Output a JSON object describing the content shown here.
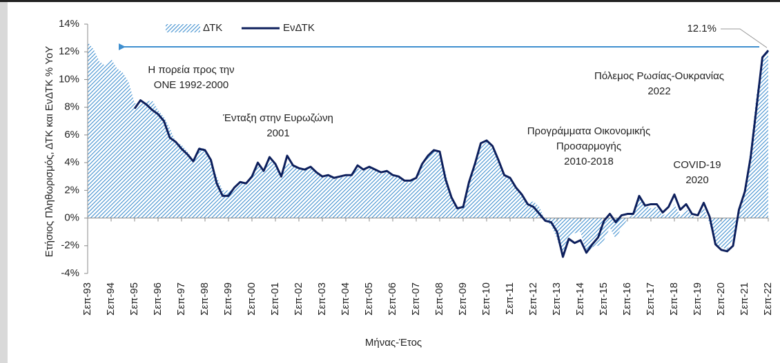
{
  "chart_data": {
    "type": "area-line",
    "y_label": "Ετήσιος Πληθωρισμός, ΔΤΚ και ΕνΔΤΚ % YoY",
    "x_label": "Μήνας-Έτος",
    "categories": [
      "Σεπ-93",
      null,
      null,
      null,
      "Σεπ-94",
      null,
      null,
      null,
      "Σεπ-95",
      null,
      null,
      null,
      "Σεπ-96",
      null,
      null,
      null,
      "Σεπ-97",
      null,
      null,
      null,
      "Σεπ-98",
      null,
      null,
      null,
      "Σεπ-99",
      null,
      null,
      null,
      "Σεπ-00",
      null,
      null,
      null,
      "Σεπ-01",
      null,
      null,
      null,
      "Σεπ-02",
      null,
      null,
      null,
      "Σεπ-03",
      null,
      null,
      null,
      "Σεπ-04",
      null,
      null,
      null,
      "Σεπ-05",
      null,
      null,
      null,
      "Σεπ-06",
      null,
      null,
      null,
      "Σεπ-07",
      null,
      null,
      null,
      "Σεπ-08",
      null,
      null,
      null,
      "Σεπ-09",
      null,
      null,
      null,
      "Σεπ-10",
      null,
      null,
      null,
      "Σεπ-11",
      null,
      null,
      null,
      "Σεπ-12",
      null,
      null,
      null,
      "Σεπ-13",
      null,
      null,
      null,
      "Σεπ-14",
      null,
      null,
      null,
      "Σεπ-15",
      null,
      null,
      null,
      "Σεπ-16",
      null,
      null,
      null,
      "Σεπ-17",
      null,
      null,
      null,
      "Σεπ-18",
      null,
      null,
      null,
      "Σεπ-19",
      null,
      null,
      null,
      "Σεπ-20",
      null,
      null,
      null,
      "Σεπ-21",
      null,
      null,
      null,
      "Σεπ-22"
    ],
    "series": [
      {
        "name": "ΔΤΚ",
        "kind": "area",
        "color": "#3f8fcf",
        "values": [
          12.7,
          12.2,
          11.3,
          11.0,
          11.5,
          10.8,
          10.5,
          9.8,
          8.3,
          8.2,
          8.4,
          8.5,
          7.8,
          7.3,
          6.5,
          5.5,
          5.3,
          4.8,
          4.2,
          5.1,
          5.0,
          4.0,
          3.0,
          2.0,
          2.0,
          2.3,
          2.6,
          2.4,
          3.0,
          3.8,
          3.5,
          4.2,
          3.8,
          3.2,
          4.0,
          3.8,
          3.6,
          3.5,
          3.6,
          3.3,
          3.0,
          3.1,
          2.8,
          2.9,
          3.0,
          3.1,
          3.6,
          3.4,
          3.6,
          3.5,
          3.2,
          3.3,
          3.0,
          3.0,
          2.6,
          2.6,
          2.9,
          3.9,
          4.5,
          4.9,
          4.7,
          3.3,
          1.5,
          0.8,
          0.9,
          2.5,
          3.9,
          5.2,
          5.6,
          5.0,
          4.2,
          3.2,
          3.0,
          2.3,
          1.8,
          1.1,
          1.2,
          0.8,
          -0.2,
          -0.5,
          -1.5,
          -2.8,
          -1.3,
          -1.1,
          -1.0,
          -2.6,
          -2.1,
          -2.0,
          -1.6,
          -0.7,
          -1.5,
          -0.7,
          -0.1,
          0.3,
          1.7,
          0.9,
          0.7,
          0.8,
          0.2,
          0.4,
          1.0,
          0.2,
          0.7,
          0.2,
          -0.1,
          0.8,
          -0.4,
          -1.9,
          -2.1,
          -2.3,
          -1.5,
          0.5,
          1.9,
          5.1,
          8.9,
          11.6,
          12.1
        ]
      },
      {
        "name": "ΕνΔΤΚ",
        "kind": "line",
        "color": "#0d1f5c",
        "values": [
          null,
          null,
          null,
          null,
          null,
          null,
          null,
          null,
          7.9,
          8.5,
          8.2,
          7.8,
          7.5,
          7.0,
          5.8,
          5.5,
          5.0,
          4.6,
          4.1,
          5.0,
          4.9,
          4.2,
          2.5,
          1.6,
          1.6,
          2.2,
          2.6,
          2.5,
          3.0,
          4.0,
          3.4,
          4.4,
          3.9,
          3.0,
          4.5,
          3.8,
          3.6,
          3.5,
          3.7,
          3.3,
          3.0,
          3.1,
          2.9,
          3.0,
          3.1,
          3.1,
          3.8,
          3.5,
          3.7,
          3.5,
          3.3,
          3.4,
          3.1,
          3.0,
          2.7,
          2.7,
          2.9,
          3.9,
          4.5,
          4.9,
          4.8,
          2.8,
          1.5,
          0.7,
          0.8,
          2.6,
          3.9,
          5.4,
          5.6,
          5.2,
          4.2,
          3.1,
          2.9,
          2.2,
          1.7,
          1.0,
          0.8,
          0.3,
          -0.2,
          -0.3,
          -1.0,
          -2.8,
          -1.5,
          -1.8,
          -1.6,
          -2.5,
          -1.9,
          -1.4,
          -0.2,
          0.3,
          -0.3,
          0.2,
          0.3,
          0.3,
          1.6,
          0.9,
          1.0,
          1.0,
          0.4,
          0.8,
          1.7,
          0.6,
          1.0,
          0.3,
          0.2,
          1.1,
          0.1,
          -1.9,
          -2.3,
          -2.4,
          -2.0,
          0.6,
          1.9,
          4.4,
          8.0,
          11.6,
          12.1
        ]
      }
    ],
    "ylim": [
      -4,
      14
    ],
    "yticks": [
      {
        "value": -4,
        "label": "-4%"
      },
      {
        "value": -2,
        "label": "-2%"
      },
      {
        "value": 0,
        "label": "0%"
      },
      {
        "value": 2,
        "label": "2%"
      },
      {
        "value": 4,
        "label": "4%"
      },
      {
        "value": 6,
        "label": "6%"
      },
      {
        "value": 8,
        "label": "8%"
      },
      {
        "value": 10,
        "label": "10%"
      },
      {
        "value": 12,
        "label": "12%"
      },
      {
        "value": 14,
        "label": "14%"
      }
    ],
    "annotations": [
      {
        "text": [
          "Η πορεία προς την",
          "ΟΝΕ 1992-2000"
        ]
      },
      {
        "text": [
          "Ένταξη στην Ευρωζώνη",
          "2001"
        ]
      },
      {
        "text": [
          "Προγράμματα Οικονομικής",
          "Προσαρμογής",
          "2010-2018"
        ]
      },
      {
        "text": [
          "COVID-19",
          "2020"
        ]
      },
      {
        "text": [
          "Πόλεμος Ρωσίας-Ουκρανίας",
          "2022"
        ]
      },
      {
        "text": [
          "12.1%"
        ]
      }
    ]
  }
}
